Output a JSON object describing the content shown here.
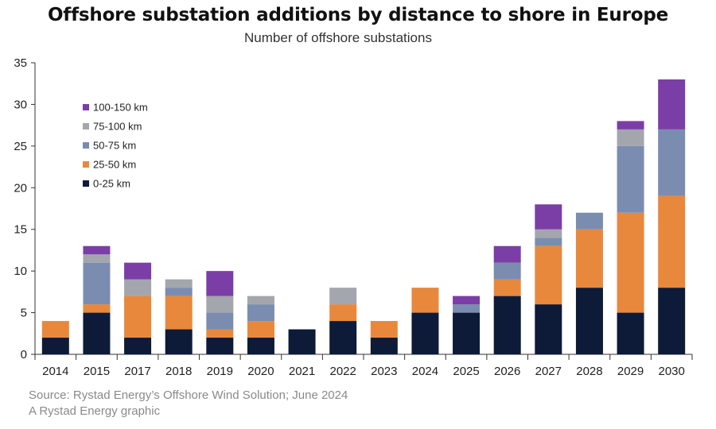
{
  "chart_data": {
    "type": "bar",
    "stacked": true,
    "title": "Offshore substation additions by distance to shore in Europe",
    "subtitle": "Number of offshore substations",
    "xlabel": "",
    "ylabel": "",
    "ylim": [
      0,
      35
    ],
    "yticks": [
      0,
      5,
      10,
      15,
      20,
      25,
      30,
      35
    ],
    "grid": false,
    "legend_position": "top-left",
    "categories": [
      "2014",
      "2015",
      "2017",
      "2018",
      "2019",
      "2020",
      "2021",
      "2022",
      "2023",
      "2024",
      "2025",
      "2026",
      "2027",
      "2028",
      "2029",
      "2030"
    ],
    "series": [
      {
        "name": "0-25 km",
        "color": "#0d1b38",
        "values": [
          2,
          5,
          2,
          3,
          2,
          2,
          3,
          4,
          2,
          5,
          5,
          7,
          6,
          8,
          5,
          8
        ]
      },
      {
        "name": "25-50 km",
        "color": "#e8883d",
        "values": [
          2,
          1,
          5,
          4,
          1,
          2,
          0,
          2,
          2,
          3,
          0,
          2,
          7,
          7,
          12,
          11
        ]
      },
      {
        "name": "50-75 km",
        "color": "#7a8db0",
        "values": [
          0,
          5,
          0,
          1,
          2,
          2,
          0,
          0,
          0,
          0,
          1,
          2,
          1,
          2,
          8,
          8
        ]
      },
      {
        "name": "75-100 km",
        "color": "#a3a6ad",
        "values": [
          0,
          1,
          2,
          1,
          2,
          1,
          0,
          2,
          0,
          0,
          0,
          0,
          1,
          0,
          2,
          0
        ]
      },
      {
        "name": "100-150 km",
        "color": "#7b3ea6",
        "values": [
          0,
          1,
          2,
          0,
          3,
          0,
          0,
          0,
          0,
          0,
          1,
          2,
          3,
          0,
          1,
          6
        ]
      }
    ],
    "legend_order": [
      "100-150 km",
      "75-100 km",
      "50-75 km",
      "25-50 km",
      "0-25 km"
    ]
  },
  "source_line_1": "Source: Rystad Energy’s Offshore Wind Solution; June 2024",
  "source_line_2": "A Rystad Energy graphic"
}
